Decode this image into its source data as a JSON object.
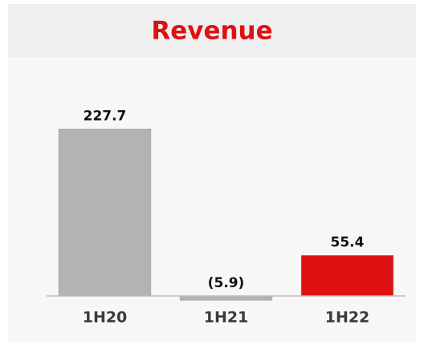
{
  "chart_data": {
    "type": "bar",
    "title": "Revenue",
    "categories": [
      "1H20",
      "1H21",
      "1H22"
    ],
    "values": [
      227.7,
      -5.9,
      55.4
    ],
    "value_labels": [
      "227.7",
      "(5.9)",
      "55.4"
    ],
    "colors": [
      "#b3b3b3",
      "#b3b3b3",
      "#dd1111"
    ],
    "ylim": [
      -10,
      250
    ]
  }
}
